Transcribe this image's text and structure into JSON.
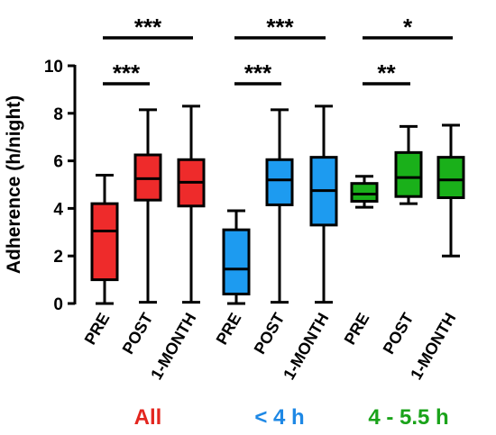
{
  "chart_data": {
    "type": "box",
    "ylabel": "Adherence (h/night)",
    "ylim": [
      0,
      10
    ],
    "yticks": [
      0,
      2,
      4,
      6,
      8,
      10
    ],
    "grid": false,
    "groups": [
      {
        "name": "All",
        "color": "#ee2b2b",
        "label_color": "#e3261f",
        "boxes": [
          {
            "category": "PRE",
            "min": 0.0,
            "q1": 1.0,
            "median": 3.05,
            "q3": 4.2,
            "max": 5.4
          },
          {
            "category": "POST",
            "min": 0.05,
            "q1": 4.35,
            "median": 5.25,
            "q3": 6.25,
            "max": 8.15
          },
          {
            "category": "1-MONTH",
            "min": 0.05,
            "q1": 4.1,
            "median": 5.1,
            "q3": 6.05,
            "max": 8.3
          }
        ]
      },
      {
        "name": "< 4 h",
        "color": "#1d9bf0",
        "label_color": "#1e88e5",
        "boxes": [
          {
            "category": "PRE",
            "min": 0.0,
            "q1": 0.4,
            "median": 1.45,
            "q3": 3.1,
            "max": 3.9
          },
          {
            "category": "POST",
            "min": 0.05,
            "q1": 4.15,
            "median": 5.2,
            "q3": 6.05,
            "max": 8.15
          },
          {
            "category": "1-MONTH",
            "min": 0.05,
            "q1": 3.3,
            "median": 4.75,
            "q3": 6.15,
            "max": 8.3
          }
        ]
      },
      {
        "name": "4 - 5.5 h",
        "color": "#1ab01a",
        "label_color": "#1aa31a",
        "boxes": [
          {
            "category": "PRE",
            "min": 4.05,
            "q1": 4.3,
            "median": 4.6,
            "q3": 5.05,
            "max": 5.35
          },
          {
            "category": "POST",
            "min": 4.2,
            "q1": 4.5,
            "median": 5.3,
            "q3": 6.35,
            "max": 7.45
          },
          {
            "category": "1-MONTH",
            "min": 2.0,
            "q1": 4.45,
            "median": 5.2,
            "q3": 6.15,
            "max": 7.5
          }
        ]
      }
    ],
    "significance": [
      {
        "group": 0,
        "from": 0,
        "to": 1,
        "stars": "***",
        "tier": "inner"
      },
      {
        "group": 0,
        "from": 0,
        "to": 2,
        "stars": "***",
        "tier": "outer"
      },
      {
        "group": 1,
        "from": 0,
        "to": 1,
        "stars": "***",
        "tier": "inner"
      },
      {
        "group": 1,
        "from": 0,
        "to": 2,
        "stars": "***",
        "tier": "outer"
      },
      {
        "group": 2,
        "from": 0,
        "to": 1,
        "stars": "**",
        "tier": "inner"
      },
      {
        "group": 2,
        "from": 0,
        "to": 2,
        "stars": "*",
        "tier": "outer"
      }
    ]
  }
}
